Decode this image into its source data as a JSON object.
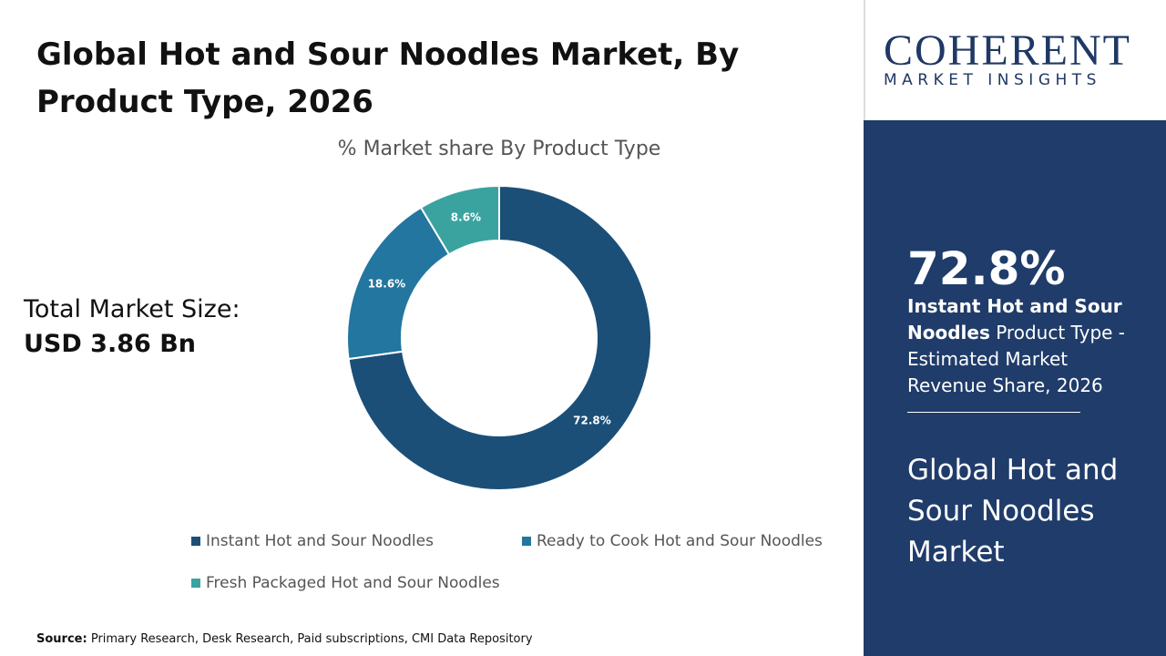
{
  "title": "Global Hot and Sour Noodles Market, By Product Type, 2026",
  "market_size": {
    "label": "Total Market Size:",
    "value": "USD 3.86 Bn"
  },
  "chart_data": {
    "type": "donut",
    "title": "% Market share By Product Type",
    "categories": [
      "Instant Hot and Sour Noodles",
      "Ready to Cook Hot and Sour Noodles",
      "Fresh Packaged Hot and Sour Noodles"
    ],
    "values": [
      72.8,
      18.6,
      8.6
    ],
    "value_labels": [
      "72.8%",
      "18.6%",
      "8.6%"
    ],
    "colors": [
      "#1b4f78",
      "#23769f",
      "#3aa3a0"
    ]
  },
  "source": {
    "label": "Source:",
    "text": "Primary Research, Desk Research, Paid subscriptions, CMI Data Repository"
  },
  "logo": {
    "name": "COHERENT",
    "tagline": "MARKET INSIGHTS"
  },
  "highlight": {
    "value": "72.8%",
    "bold": "Instant Hot and Sour Noodles",
    "text": "Product Type - Estimated Market Revenue Share, 2026"
  },
  "sidebar_title": "Global Hot and Sour Noodles Market"
}
